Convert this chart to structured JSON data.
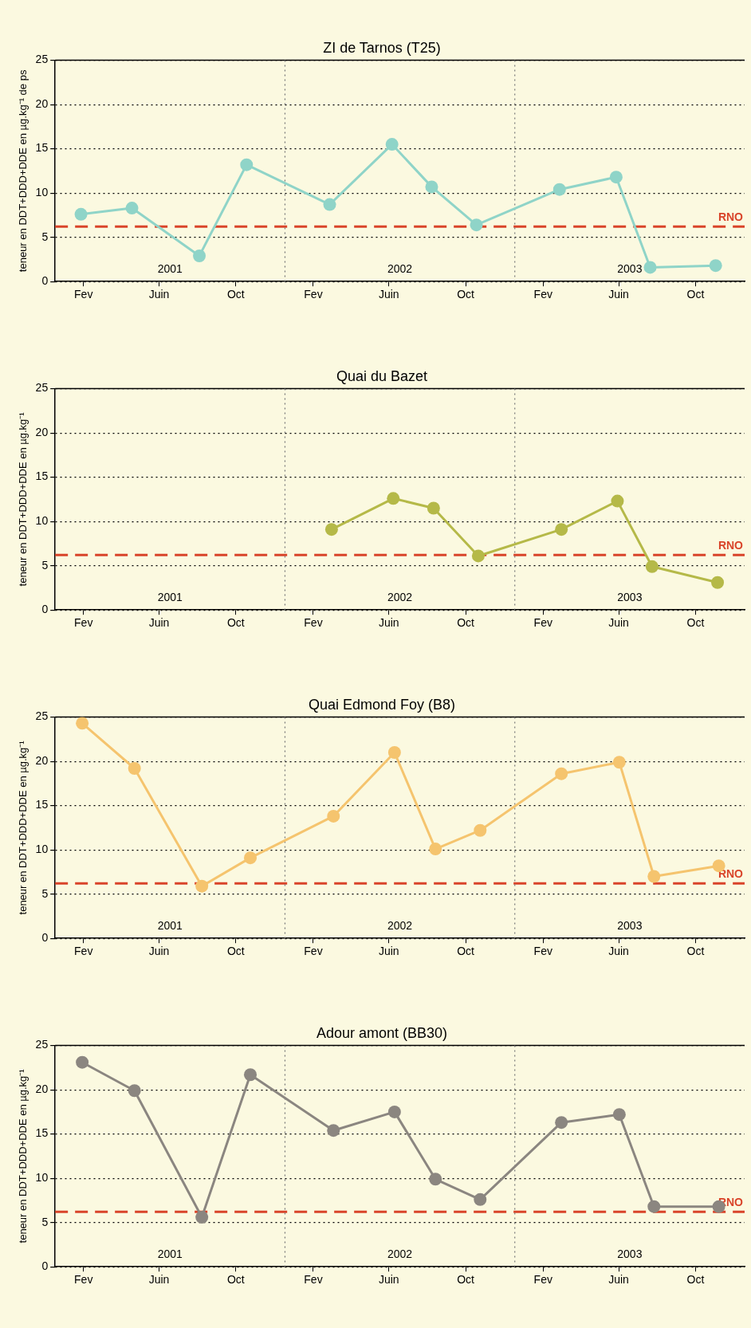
{
  "chart_data": [
    {
      "type": "line",
      "title": "ZI de Tarnos (T25)",
      "ylabel": "teneur en DDT+DDD+DDE en µg.kg⁻¹ de ps",
      "x": [
        "2001-02-11",
        "2001-05-03",
        "2001-08-18",
        "2001-11-01",
        "2002-03-13",
        "2002-06-20",
        "2002-08-22",
        "2002-11-01",
        "2003-03-13",
        "2003-06-11",
        "2003-08-04",
        "2003-11-16"
      ],
      "series": [
        {
          "color": "#8fd4c8",
          "values": [
            7.6,
            8.3,
            2.9,
            13.2,
            8.7,
            15.5,
            10.7,
            6.4,
            10.4,
            11.8,
            1.6,
            1.8
          ]
        }
      ],
      "xlim": [
        "2001-01-01",
        "2004-01-01"
      ],
      "xticks": [
        {
          "value": "2001-02-15",
          "label": "Fev"
        },
        {
          "value": "2001-06-15",
          "label": "Juin"
        },
        {
          "value": "2001-10-15",
          "label": "Oct"
        },
        {
          "value": "2002-02-15",
          "label": "Fev"
        },
        {
          "value": "2002-06-15",
          "label": "Juin"
        },
        {
          "value": "2002-10-15",
          "label": "Oct"
        },
        {
          "value": "2003-02-15",
          "label": "Fev"
        },
        {
          "value": "2003-06-15",
          "label": "Juin"
        },
        {
          "value": "2003-10-15",
          "label": "Oct"
        }
      ],
      "ylim": [
        0,
        25
      ],
      "yticks": [
        0,
        5,
        10,
        15,
        20,
        25
      ],
      "grid": "y",
      "legend": false,
      "marker": "circle",
      "line_style": "solid",
      "ref_lines": [
        {
          "axis": "y",
          "value": 6.2,
          "label": "RNO",
          "color": "#d9442a",
          "line_style": "dashed"
        },
        {
          "axis": "x",
          "value": "2002-01-01",
          "color": "#777777",
          "line_style": "dotted"
        },
        {
          "axis": "x",
          "value": "2003-01-01",
          "color": "#777777",
          "line_style": "dotted"
        }
      ],
      "annotations": [
        "2001",
        "2002",
        "2003"
      ]
    },
    {
      "type": "line",
      "title": "Quai du Bazet",
      "ylabel": "teneur en DDT+DDD+DDE en µg.kg⁻¹",
      "x": [
        "2002-03-16",
        "2002-06-22",
        "2002-08-25",
        "2002-11-04",
        "2003-03-16",
        "2003-06-13",
        "2003-08-07",
        "2003-11-19"
      ],
      "series": [
        {
          "color": "#b5b948",
          "values": [
            9.1,
            12.6,
            11.5,
            6.1,
            9.1,
            12.3,
            4.9,
            3.1
          ]
        }
      ],
      "xlim": [
        "2001-01-01",
        "2004-01-01"
      ],
      "xticks": [
        {
          "value": "2001-02-15",
          "label": "Fev"
        },
        {
          "value": "2001-06-15",
          "label": "Juin"
        },
        {
          "value": "2001-10-15",
          "label": "Oct"
        },
        {
          "value": "2002-02-15",
          "label": "Fev"
        },
        {
          "value": "2002-06-15",
          "label": "Juin"
        },
        {
          "value": "2002-10-15",
          "label": "Oct"
        },
        {
          "value": "2003-02-15",
          "label": "Fev"
        },
        {
          "value": "2003-06-15",
          "label": "Juin"
        },
        {
          "value": "2003-10-15",
          "label": "Oct"
        }
      ],
      "ylim": [
        0,
        25
      ],
      "yticks": [
        0,
        5,
        10,
        15,
        20,
        25
      ],
      "grid": "y",
      "legend": false,
      "marker": "circle",
      "line_style": "solid",
      "ref_lines": [
        {
          "axis": "y",
          "value": 6.2,
          "label": "RNO",
          "color": "#d9442a",
          "line_style": "dashed"
        },
        {
          "axis": "x",
          "value": "2002-01-01",
          "color": "#777777",
          "line_style": "dotted"
        },
        {
          "axis": "x",
          "value": "2003-01-01",
          "color": "#777777",
          "line_style": "dotted"
        }
      ],
      "annotations": [
        "2001",
        "2002",
        "2003"
      ]
    },
    {
      "type": "line",
      "title": "Quai Edmond Foy (B8)",
      "ylabel": "teneur en DDT+DDD+DDE en µg.kg⁻¹",
      "x": [
        "2001-02-13",
        "2001-05-07",
        "2001-08-22",
        "2001-11-07",
        "2002-03-19",
        "2002-06-24",
        "2002-08-28",
        "2002-11-07",
        "2003-03-16",
        "2003-06-16",
        "2003-08-10",
        "2003-11-21"
      ],
      "series": [
        {
          "color": "#f5c46e",
          "values": [
            24.3,
            19.2,
            5.9,
            9.1,
            13.8,
            21.0,
            10.1,
            12.2,
            18.6,
            19.9,
            7.0,
            8.2
          ]
        }
      ],
      "xlim": [
        "2001-01-01",
        "2004-01-01"
      ],
      "xticks": [
        {
          "value": "2001-02-15",
          "label": "Fev"
        },
        {
          "value": "2001-06-15",
          "label": "Juin"
        },
        {
          "value": "2001-10-15",
          "label": "Oct"
        },
        {
          "value": "2002-02-15",
          "label": "Fev"
        },
        {
          "value": "2002-06-15",
          "label": "Juin"
        },
        {
          "value": "2002-10-15",
          "label": "Oct"
        },
        {
          "value": "2003-02-15",
          "label": "Fev"
        },
        {
          "value": "2003-06-15",
          "label": "Juin"
        },
        {
          "value": "2003-10-15",
          "label": "Oct"
        }
      ],
      "ylim": [
        0,
        25
      ],
      "yticks": [
        0,
        5,
        10,
        15,
        20,
        25
      ],
      "grid": "y",
      "legend": false,
      "marker": "circle",
      "line_style": "solid",
      "ref_lines": [
        {
          "axis": "y",
          "value": 6.2,
          "label": "RNO",
          "color": "#d9442a",
          "line_style": "dashed"
        },
        {
          "axis": "x",
          "value": "2002-01-01",
          "color": "#777777",
          "line_style": "dotted"
        },
        {
          "axis": "x",
          "value": "2003-01-01",
          "color": "#777777",
          "line_style": "dotted"
        }
      ],
      "annotations": [
        "2001",
        "2002",
        "2003"
      ]
    },
    {
      "type": "line",
      "title": "Adour amont (BB30)",
      "ylabel": "teneur en DDT+DDD+DDE en µg.kg⁻¹",
      "x": [
        "2001-02-13",
        "2001-05-07",
        "2001-08-22",
        "2001-11-07",
        "2002-03-19",
        "2002-06-24",
        "2002-08-28",
        "2002-11-07",
        "2003-03-16",
        "2003-06-16",
        "2003-08-10",
        "2003-11-21"
      ],
      "series": [
        {
          "color": "#8b8680",
          "values": [
            23.1,
            19.9,
            5.6,
            21.7,
            15.4,
            17.5,
            9.9,
            7.6,
            16.3,
            17.2,
            6.8,
            6.8
          ]
        }
      ],
      "xlim": [
        "2001-01-01",
        "2004-01-01"
      ],
      "xticks": [
        {
          "value": "2001-02-15",
          "label": "Fev"
        },
        {
          "value": "2001-06-15",
          "label": "Juin"
        },
        {
          "value": "2001-10-15",
          "label": "Oct"
        },
        {
          "value": "2002-02-15",
          "label": "Fev"
        },
        {
          "value": "2002-06-15",
          "label": "Juin"
        },
        {
          "value": "2002-10-15",
          "label": "Oct"
        },
        {
          "value": "2003-02-15",
          "label": "Fev"
        },
        {
          "value": "2003-06-15",
          "label": "Juin"
        },
        {
          "value": "2003-10-15",
          "label": "Oct"
        }
      ],
      "ylim": [
        0,
        25
      ],
      "yticks": [
        0,
        5,
        10,
        15,
        20,
        25
      ],
      "grid": "y",
      "legend": false,
      "marker": "circle",
      "line_style": "solid",
      "ref_lines": [
        {
          "axis": "y",
          "value": 6.2,
          "label": "RNO",
          "color": "#d9442a",
          "line_style": "dashed"
        },
        {
          "axis": "x",
          "value": "2002-01-01",
          "color": "#777777",
          "line_style": "dotted"
        },
        {
          "axis": "x",
          "value": "2003-01-01",
          "color": "#777777",
          "line_style": "dotted"
        }
      ],
      "annotations": [
        "2001",
        "2002",
        "2003"
      ]
    }
  ]
}
